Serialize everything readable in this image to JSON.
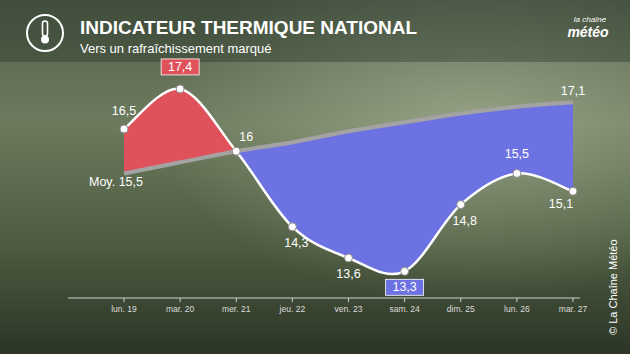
{
  "chart_data": {
    "type": "line",
    "title": "INDICATEUR THERMIQUE NATIONAL",
    "subtitle": "Vers un rafraîchissement marqué",
    "brand": [
      "la chaîne",
      "météo"
    ],
    "copyright": "© La Chaîne Météo",
    "categories": [
      "lun. 19",
      "mar. 20",
      "mer. 21",
      "jeu. 22",
      "ven. 23",
      "sam. 24",
      "dim. 25",
      "lun. 26",
      "mar. 27"
    ],
    "series": [
      {
        "values": [
          16.5,
          17.4,
          16,
          14.3,
          13.6,
          13.3,
          14.8,
          15.5,
          15.1
        ],
        "value_labels": [
          "16,5",
          "17,4",
          "16",
          "14,3",
          "13,6",
          "13,3",
          "14,8",
          "15,5",
          "15,1"
        ],
        "color": "#ffffff",
        "marker": "circle"
      },
      {
        "name": "Moy.",
        "values": [
          15.5,
          15.75,
          16,
          16.2,
          16.45,
          16.65,
          16.85,
          17.0,
          17.1
        ],
        "value_labels": [
          "15,5",
          null,
          null,
          null,
          null,
          null,
          null,
          null,
          "17,1"
        ],
        "color": "#a3a3a3"
      }
    ],
    "above_color": "#e0525b",
    "below_color": "#6d72e3",
    "ylim": [
      12.7,
      18.5
    ],
    "tick_labels": "x",
    "grid": false,
    "data_labels": true
  }
}
